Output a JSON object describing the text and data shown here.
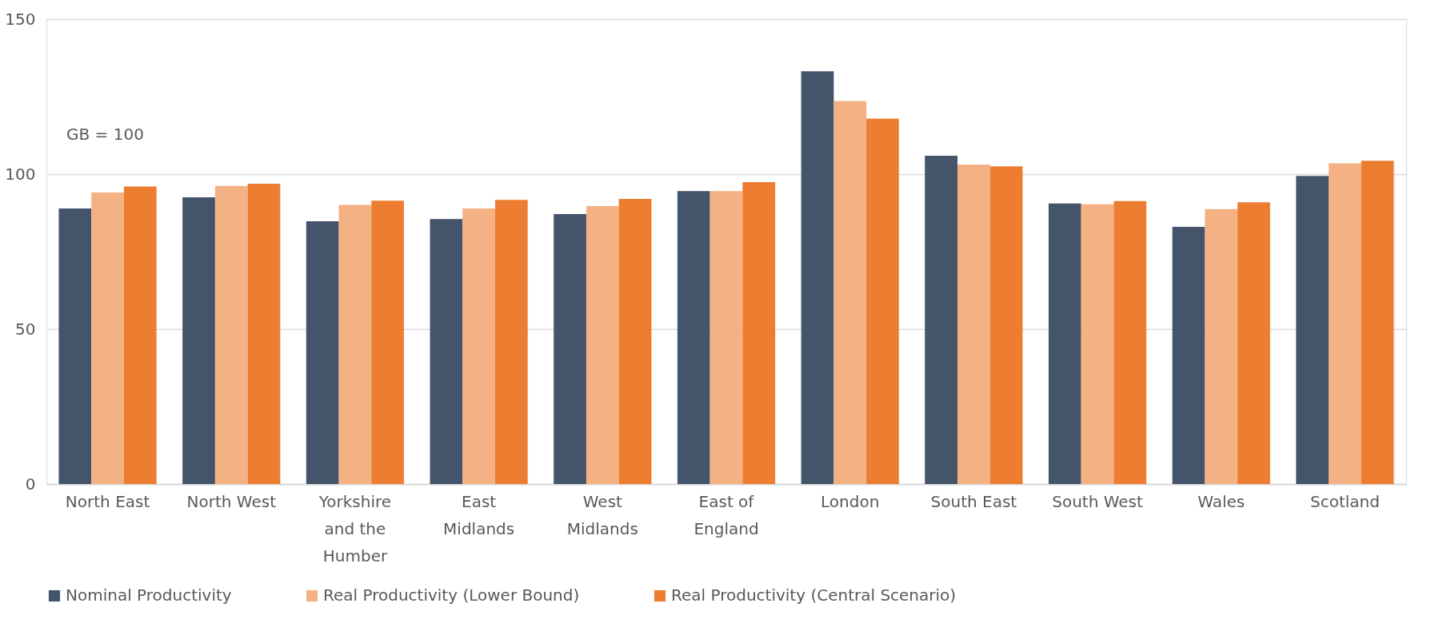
{
  "chart_data": {
    "type": "bar",
    "categories": [
      "North East",
      "North West",
      "Yorkshire and the Humber",
      "East Midlands",
      "West Midlands",
      "East of England",
      "London",
      "South East",
      "South West",
      "Wales",
      "Scotland"
    ],
    "series": [
      {
        "name": "Nominal Productivity",
        "color": "#44546a",
        "values": [
          88.9,
          92.5,
          84.8,
          85.5,
          87.1,
          94.5,
          133.2,
          105.9,
          90.5,
          83.0,
          99.4
        ]
      },
      {
        "name": "Real Productivity (Lower Bound)",
        "color": "#f4b183",
        "values": [
          94.1,
          96.2,
          90.1,
          88.9,
          89.7,
          94.5,
          123.6,
          103.1,
          90.3,
          88.7,
          103.5
        ]
      },
      {
        "name": "Real Productivity (Central Scenario)",
        "color": "#ed7d31",
        "values": [
          96.0,
          96.9,
          91.4,
          91.7,
          92.0,
          97.4,
          117.9,
          102.5,
          91.3,
          90.9,
          104.3
        ]
      }
    ],
    "ylim": [
      0,
      150
    ],
    "yticks": [
      0,
      50,
      100,
      150
    ],
    "grid": "y",
    "legend": "bottom",
    "annotations": [
      "GB = 100"
    ]
  }
}
